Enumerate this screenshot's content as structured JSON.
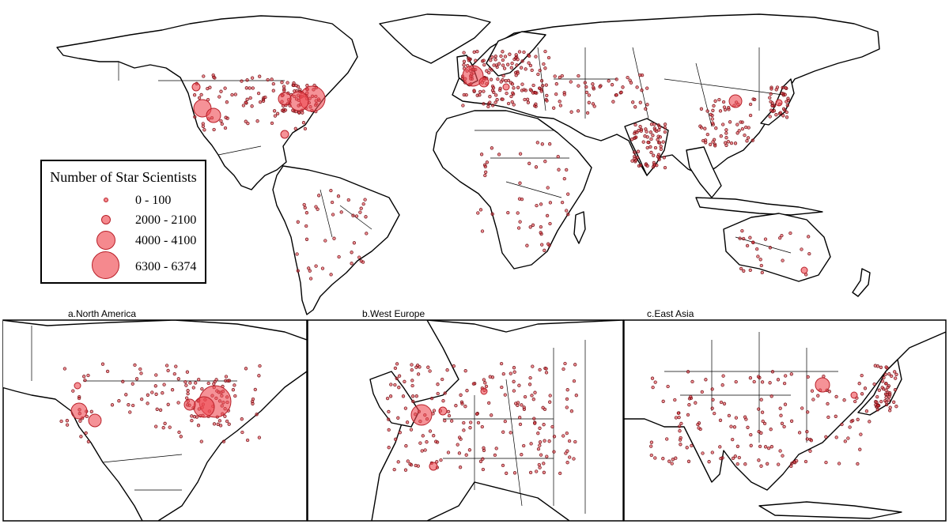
{
  "legend": {
    "title": "Number of Star Scientists",
    "classes": [
      {
        "label": "0 - 100"
      },
      {
        "label": "2000 - 2100"
      },
      {
        "label": "4000 - 4100"
      },
      {
        "label": "6300 - 6374"
      }
    ]
  },
  "panels": [
    {
      "label": "a.North America"
    },
    {
      "label": "b.West Europe"
    },
    {
      "label": "c.East Asia"
    }
  ],
  "colors": {
    "bubble": "#ef4a52",
    "outline": "#000000"
  }
}
